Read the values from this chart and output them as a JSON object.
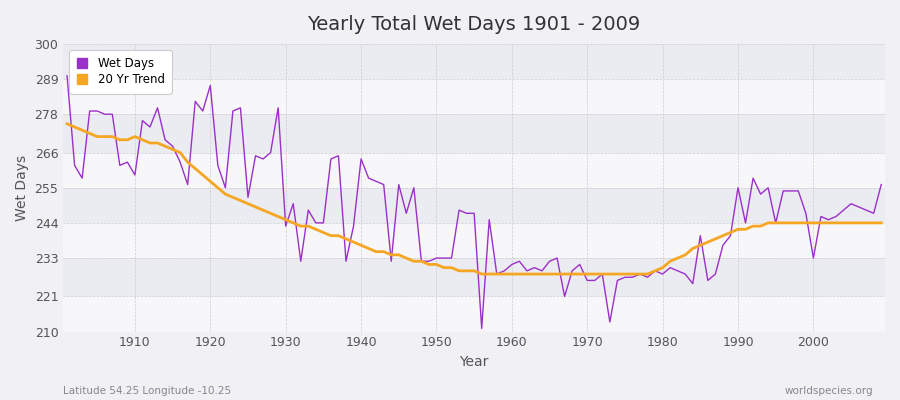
{
  "title": "Yearly Total Wet Days 1901 - 2009",
  "xlabel": "Year",
  "ylabel": "Wet Days",
  "xlim": [
    1901,
    2009
  ],
  "ylim": [
    210,
    300
  ],
  "yticks": [
    210,
    221,
    233,
    244,
    255,
    266,
    278,
    289,
    300
  ],
  "background_color": "#f0f0f5",
  "plot_bg_color": "#f0f0f5",
  "wet_days_color": "#9b30c8",
  "trend_color": "#f5a623",
  "wet_days_label": "Wet Days",
  "trend_label": "20 Yr Trend",
  "bottom_left_text": "Latitude 54.25 Longitude -10.25",
  "bottom_right_text": "worldspecies.org",
  "wet_days": [
    290,
    262,
    258,
    279,
    279,
    278,
    278,
    262,
    263,
    259,
    276,
    274,
    280,
    270,
    268,
    263,
    256,
    282,
    279,
    287,
    262,
    255,
    279,
    280,
    252,
    265,
    264,
    266,
    280,
    243,
    250,
    232,
    248,
    244,
    244,
    264,
    265,
    232,
    243,
    264,
    258,
    257,
    256,
    232,
    256,
    247,
    255,
    232,
    232,
    233,
    233,
    233,
    248,
    247,
    247,
    211,
    245,
    228,
    229,
    231,
    232,
    229,
    230,
    229,
    232,
    233,
    221,
    229,
    231,
    226,
    226,
    228,
    213,
    226,
    227,
    227,
    228,
    227,
    229,
    228,
    230,
    229,
    228,
    225,
    240,
    226,
    228,
    237,
    240,
    255,
    244,
    258,
    253,
    255,
    244,
    254,
    254,
    254,
    247,
    233,
    246,
    245,
    246,
    248,
    250,
    249,
    248,
    247,
    256
  ],
  "trend": [
    275,
    274,
    273,
    272,
    271,
    271,
    271,
    270,
    270,
    271,
    270,
    269,
    269,
    268,
    267,
    266,
    263,
    261,
    259,
    257,
    255,
    253,
    252,
    251,
    250,
    249,
    248,
    247,
    246,
    245,
    244,
    243,
    243,
    242,
    241,
    240,
    240,
    239,
    238,
    237,
    236,
    235,
    235,
    234,
    234,
    233,
    232,
    232,
    231,
    231,
    230,
    230,
    229,
    229,
    229,
    228,
    228,
    228,
    228,
    228,
    228,
    228,
    228,
    228,
    228,
    228,
    228,
    228,
    228,
    228,
    228,
    228,
    228,
    228,
    228,
    228,
    228,
    228,
    229,
    230,
    232,
    233,
    234,
    236,
    237,
    238,
    239,
    240,
    241,
    242,
    242,
    243,
    243,
    244,
    244,
    244,
    244,
    244,
    244,
    244,
    244,
    244,
    244,
    244,
    244,
    244,
    244,
    244,
    244
  ]
}
